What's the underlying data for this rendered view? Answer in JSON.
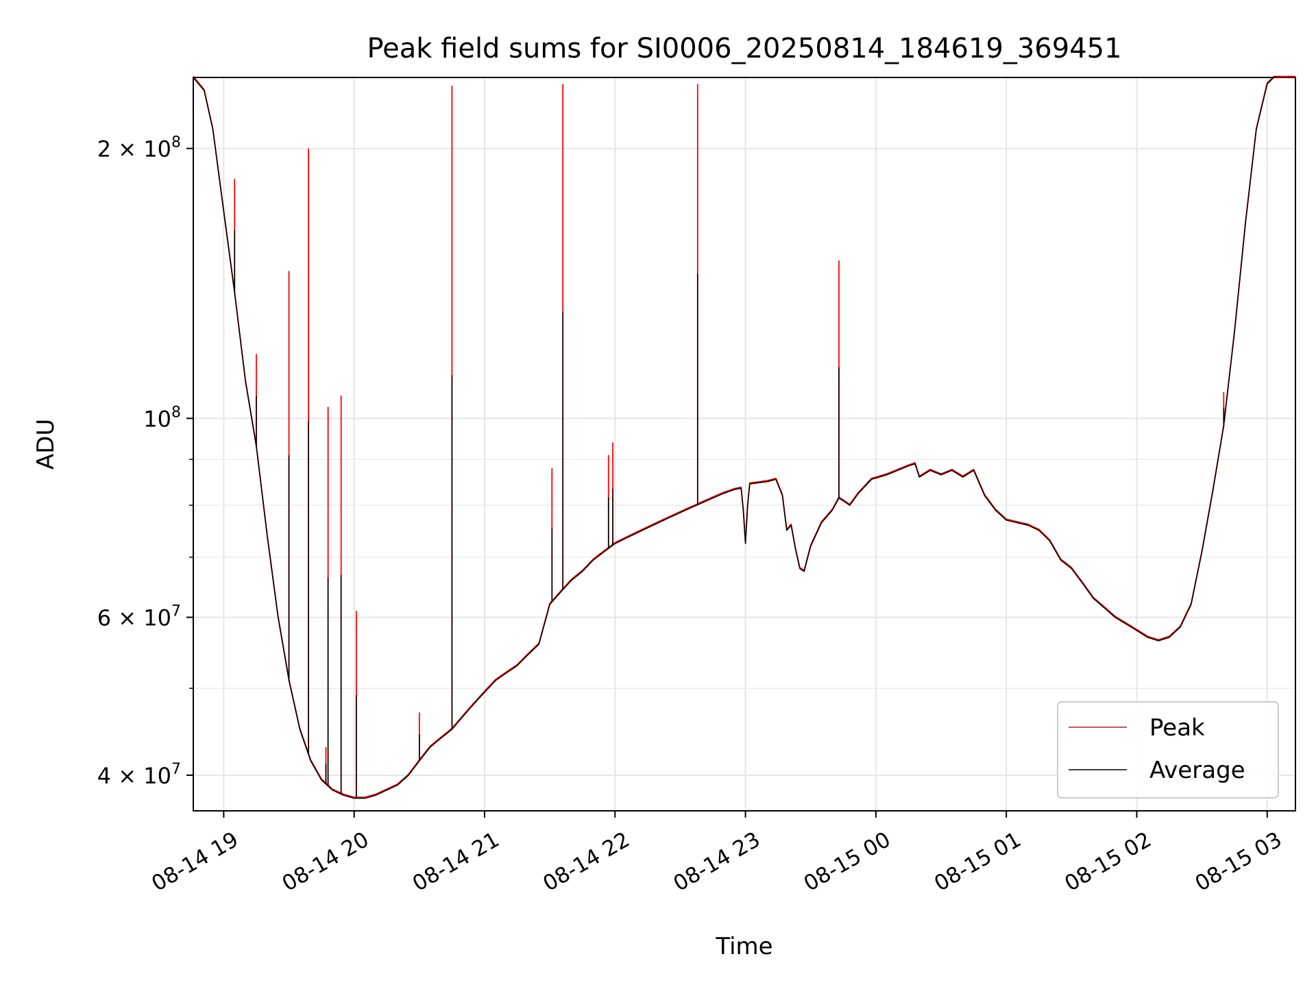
{
  "chart_data": {
    "type": "line",
    "title": "Peak field sums for SI0006_20250814_184619_369451",
    "xlabel": "Time",
    "ylabel": "ADU",
    "y_scale": "log",
    "grid": true,
    "legend_position": "lower-right",
    "xlim": [
      "2025-08-14 18:46",
      "2025-08-15 03:13"
    ],
    "ylim": [
      36500000,
      240000000
    ],
    "x_ticks": [
      "08-14 19",
      "08-14 20",
      "08-14 21",
      "08-14 22",
      "08-14 23",
      "08-15 00",
      "08-15 01",
      "08-15 02",
      "08-15 03"
    ],
    "y_ticks_major": [
      {
        "value": 40000000,
        "mantissa": "4",
        "exp": "7"
      },
      {
        "value": 60000000,
        "mantissa": "6",
        "exp": "7"
      },
      {
        "value": 100000000,
        "mantissa": "",
        "exp": "8"
      },
      {
        "value": 200000000,
        "mantissa": "2",
        "exp": "8"
      }
    ],
    "y_ticks_minor": [
      50000000,
      70000000,
      80000000,
      90000000
    ],
    "series": [
      {
        "name": "Peak",
        "color": "#ff0000",
        "note": "same as Average except at spikes",
        "spikes": [
          [
            "2025-08-14 19:05",
            185000000
          ],
          [
            "2025-08-14 19:15",
            118000000
          ],
          [
            "2025-08-14 19:30",
            146000000
          ],
          [
            "2025-08-14 19:39",
            200000000
          ],
          [
            "2025-08-14 19:47",
            43000000
          ],
          [
            "2025-08-14 19:48",
            103000000
          ],
          [
            "2025-08-14 19:54",
            106000000
          ],
          [
            "2025-08-14 20:01",
            61000000
          ],
          [
            "2025-08-14 20:30",
            47000000
          ],
          [
            "2025-08-14 20:45",
            235000000
          ],
          [
            "2025-08-14 21:31",
            88000000
          ],
          [
            "2025-08-14 21:36",
            236000000
          ],
          [
            "2025-08-14 21:57",
            91000000
          ],
          [
            "2025-08-14 21:59",
            94000000
          ],
          [
            "2025-08-14 22:38",
            236000000
          ],
          [
            "2025-08-14 23:43",
            150000000
          ],
          [
            "2025-08-15 02:40",
            107000000
          ]
        ]
      },
      {
        "name": "Average",
        "color": "#000000",
        "points": [
          [
            "2025-08-14 18:46",
            240000000
          ],
          [
            "2025-08-14 18:51",
            232000000
          ],
          [
            "2025-08-14 18:55",
            210000000
          ],
          [
            "2025-08-14 19:00",
            170000000
          ],
          [
            "2025-08-14 19:05",
            138000000
          ],
          [
            "2025-08-14 19:10",
            110000000
          ],
          [
            "2025-08-14 19:15",
            93000000
          ],
          [
            "2025-08-14 19:20",
            74000000
          ],
          [
            "2025-08-14 19:25",
            60000000
          ],
          [
            "2025-08-14 19:30",
            51000000
          ],
          [
            "2025-08-14 19:35",
            45000000
          ],
          [
            "2025-08-14 19:40",
            41500000
          ],
          [
            "2025-08-14 19:45",
            39500000
          ],
          [
            "2025-08-14 19:50",
            38500000
          ],
          [
            "2025-08-14 19:55",
            38000000
          ],
          [
            "2025-08-14 20:00",
            37700000
          ],
          [
            "2025-08-14 20:05",
            37700000
          ],
          [
            "2025-08-14 20:10",
            38000000
          ],
          [
            "2025-08-14 20:15",
            38500000
          ],
          [
            "2025-08-14 20:20",
            39000000
          ],
          [
            "2025-08-14 20:25",
            40000000
          ],
          [
            "2025-08-14 20:30",
            41500000
          ],
          [
            "2025-08-14 20:35",
            43000000
          ],
          [
            "2025-08-14 20:40",
            44000000
          ],
          [
            "2025-08-14 20:45",
            45000000
          ],
          [
            "2025-08-14 20:50",
            46500000
          ],
          [
            "2025-08-14 20:55",
            48000000
          ],
          [
            "2025-08-14 21:00",
            49500000
          ],
          [
            "2025-08-14 21:05",
            51000000
          ],
          [
            "2025-08-14 21:10",
            52000000
          ],
          [
            "2025-08-14 21:15",
            53000000
          ],
          [
            "2025-08-14 21:20",
            54500000
          ],
          [
            "2025-08-14 21:25",
            56000000
          ],
          [
            "2025-08-14 21:30",
            62000000
          ],
          [
            "2025-08-14 21:35",
            64000000
          ],
          [
            "2025-08-14 21:40",
            66000000
          ],
          [
            "2025-08-14 21:45",
            67500000
          ],
          [
            "2025-08-14 21:50",
            69500000
          ],
          [
            "2025-08-14 21:55",
            71000000
          ],
          [
            "2025-08-14 22:00",
            72500000
          ],
          [
            "2025-08-14 22:05",
            73500000
          ],
          [
            "2025-08-14 22:10",
            74500000
          ],
          [
            "2025-08-14 22:15",
            75500000
          ],
          [
            "2025-08-14 22:20",
            76500000
          ],
          [
            "2025-08-14 22:25",
            77500000
          ],
          [
            "2025-08-14 22:30",
            78500000
          ],
          [
            "2025-08-14 22:35",
            79500000
          ],
          [
            "2025-08-14 22:40",
            80500000
          ],
          [
            "2025-08-14 22:45",
            81500000
          ],
          [
            "2025-08-14 22:50",
            82500000
          ],
          [
            "2025-08-14 22:55",
            83300000
          ],
          [
            "2025-08-14 22:58",
            83600000
          ],
          [
            "2025-08-14 22:59",
            79000000
          ],
          [
            "2025-08-14 23:00",
            72500000
          ],
          [
            "2025-08-14 23:01",
            80000000
          ],
          [
            "2025-08-14 23:02",
            84500000
          ],
          [
            "2025-08-14 23:10",
            85000000
          ],
          [
            "2025-08-14 23:14",
            85500000
          ],
          [
            "2025-08-14 23:17",
            82000000
          ],
          [
            "2025-08-14 23:19",
            75000000
          ],
          [
            "2025-08-14 23:21",
            76000000
          ],
          [
            "2025-08-14 23:23",
            71500000
          ],
          [
            "2025-08-14 23:25",
            68000000
          ],
          [
            "2025-08-14 23:27",
            67500000
          ],
          [
            "2025-08-14 23:30",
            72000000
          ],
          [
            "2025-08-14 23:35",
            76500000
          ],
          [
            "2025-08-14 23:40",
            79000000
          ],
          [
            "2025-08-14 23:43",
            81500000
          ],
          [
            "2025-08-14 23:48",
            80000000
          ],
          [
            "2025-08-14 23:52",
            82500000
          ],
          [
            "2025-08-14 23:58",
            85500000
          ],
          [
            "2025-08-15 00:05",
            86500000
          ],
          [
            "2025-08-15 00:10",
            87500000
          ],
          [
            "2025-08-15 00:15",
            88500000
          ],
          [
            "2025-08-15 00:18",
            89000000
          ],
          [
            "2025-08-15 00:20",
            86000000
          ],
          [
            "2025-08-15 00:25",
            87500000
          ],
          [
            "2025-08-15 00:30",
            86500000
          ],
          [
            "2025-08-15 00:35",
            87500000
          ],
          [
            "2025-08-15 00:40",
            86000000
          ],
          [
            "2025-08-15 00:45",
            87500000
          ],
          [
            "2025-08-15 00:50",
            82000000
          ],
          [
            "2025-08-15 00:55",
            79000000
          ],
          [
            "2025-08-15 01:00",
            77000000
          ],
          [
            "2025-08-15 01:05",
            76500000
          ],
          [
            "2025-08-15 01:10",
            76000000
          ],
          [
            "2025-08-15 01:15",
            75000000
          ],
          [
            "2025-08-15 01:20",
            73000000
          ],
          [
            "2025-08-15 01:25",
            69500000
          ],
          [
            "2025-08-15 01:30",
            68000000
          ],
          [
            "2025-08-15 01:35",
            65500000
          ],
          [
            "2025-08-15 01:40",
            63000000
          ],
          [
            "2025-08-15 01:45",
            61500000
          ],
          [
            "2025-08-15 01:50",
            60000000
          ],
          [
            "2025-08-15 01:55",
            59000000
          ],
          [
            "2025-08-15 02:00",
            58000000
          ],
          [
            "2025-08-15 02:05",
            57000000
          ],
          [
            "2025-08-15 02:10",
            56500000
          ],
          [
            "2025-08-15 02:15",
            57000000
          ],
          [
            "2025-08-15 02:20",
            58500000
          ],
          [
            "2025-08-15 02:25",
            62000000
          ],
          [
            "2025-08-15 02:30",
            71000000
          ],
          [
            "2025-08-15 02:35",
            83000000
          ],
          [
            "2025-08-15 02:40",
            98000000
          ],
          [
            "2025-08-15 02:45",
            125000000
          ],
          [
            "2025-08-15 02:50",
            165000000
          ],
          [
            "2025-08-15 02:55",
            210000000
          ],
          [
            "2025-08-15 03:00",
            236000000
          ],
          [
            "2025-08-15 03:03",
            240000000
          ],
          [
            "2025-08-15 03:13",
            240000000
          ]
        ]
      }
    ]
  }
}
